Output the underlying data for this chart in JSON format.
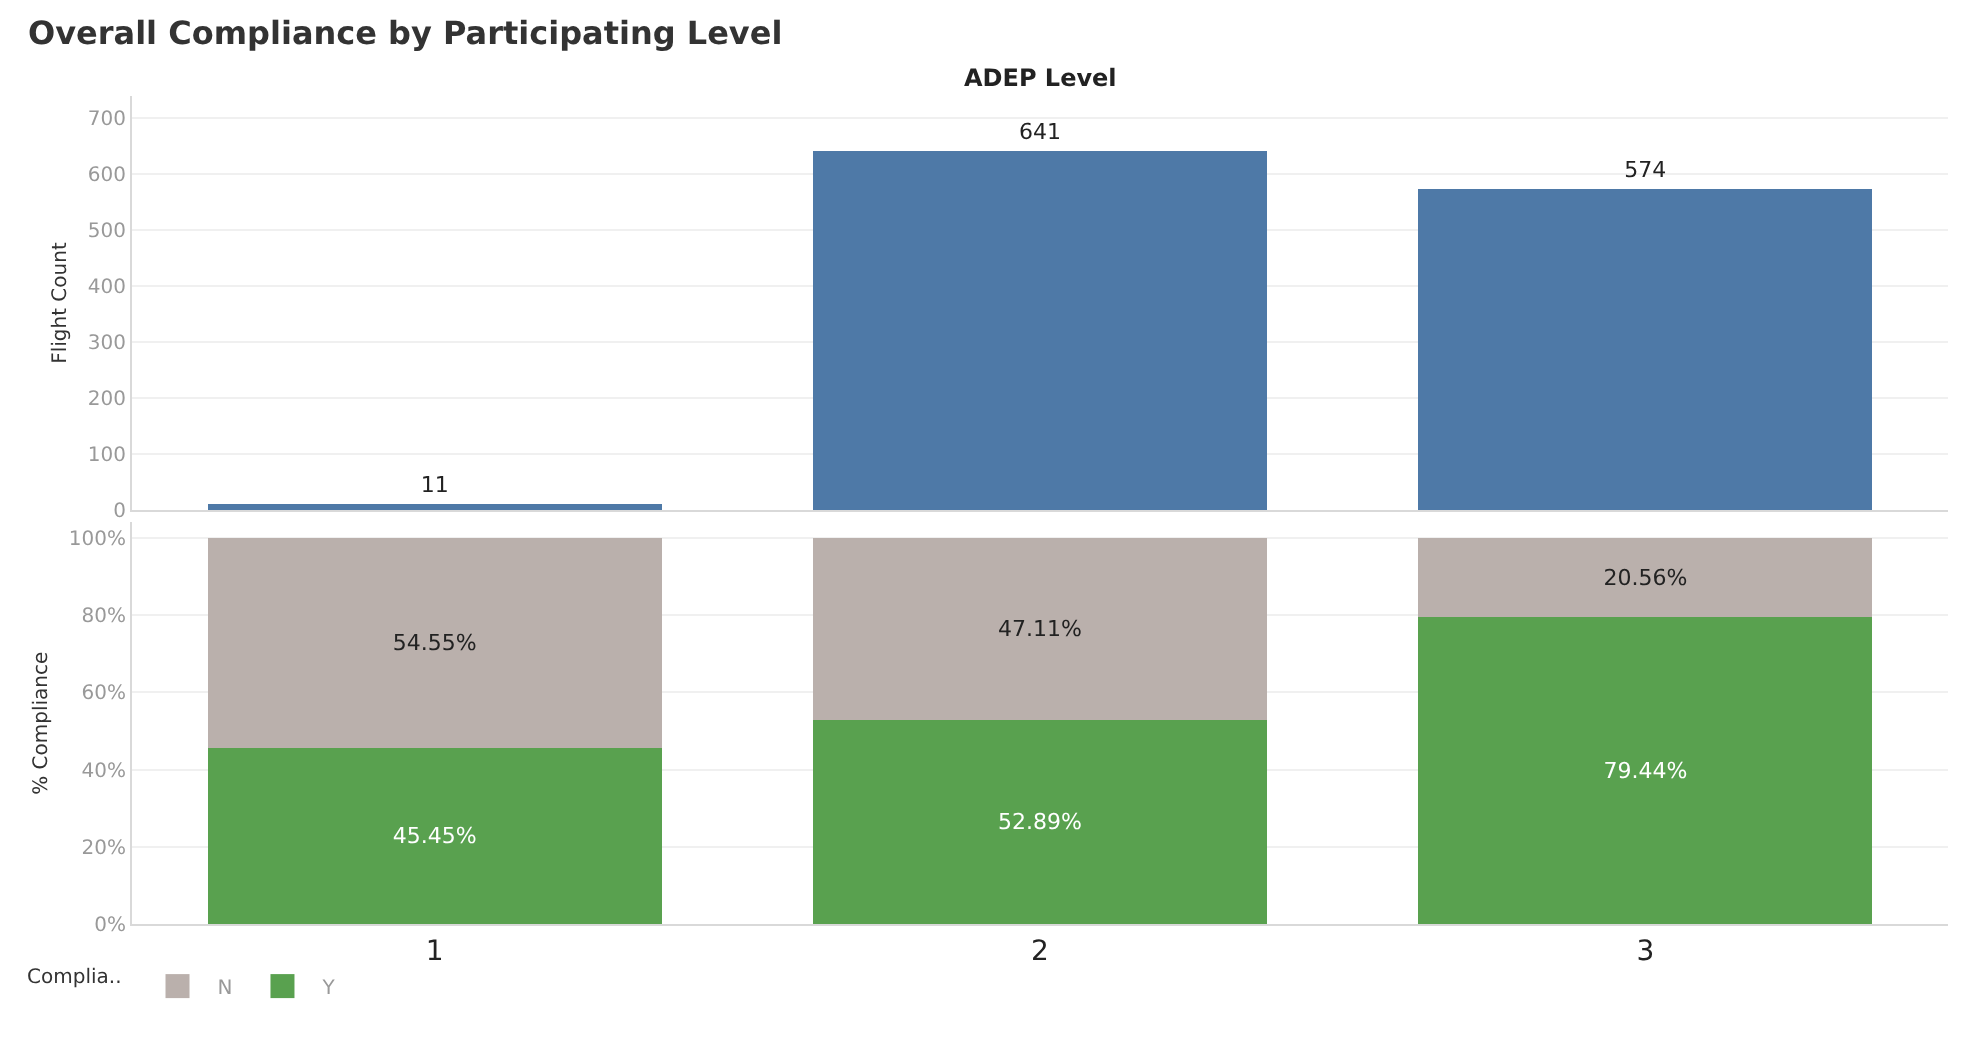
{
  "chart_data": [
    {
      "type": "bar",
      "title": "Overall Compliance by Participating Level",
      "xlabel": "ADEP Level",
      "ylabel": "Flight Count",
      "categories": [
        "1",
        "2",
        "3"
      ],
      "values": [
        11,
        641,
        574
      ],
      "color": "#4e79a7",
      "data_labels": true,
      "ylim": [
        0,
        740
      ],
      "yticks": [
        0,
        100,
        200,
        300,
        400,
        500,
        600,
        700
      ],
      "grid": "y",
      "tick_labels": "y"
    },
    {
      "type": "bar",
      "stacked": true,
      "ylabel": "% Compliance",
      "categories": [
        "1",
        "2",
        "3"
      ],
      "legend_title": "Complia..",
      "legend": "bottom",
      "grid": "y",
      "series": [
        {
          "name": "Y",
          "color": "#59a14f",
          "values": [
            45.45,
            52.89,
            79.44
          ],
          "value_labels": [
            "45.45%",
            "52.89%",
            "79.44%"
          ]
        },
        {
          "name": "N",
          "color": "#bab0ac",
          "values": [
            54.55,
            47.11,
            20.56
          ],
          "value_labels": [
            "54.55%",
            "47.11%",
            "20.56%"
          ]
        }
      ],
      "ylim": [
        0,
        104
      ],
      "yticks": [
        {
          "value": 0,
          "label": "0%"
        },
        {
          "value": 20,
          "label": "20%"
        },
        {
          "value": 40,
          "label": "40%"
        },
        {
          "value": 60,
          "label": "60%"
        },
        {
          "value": 80,
          "label": "80%"
        },
        {
          "value": 100,
          "label": "100%"
        }
      ]
    }
  ]
}
